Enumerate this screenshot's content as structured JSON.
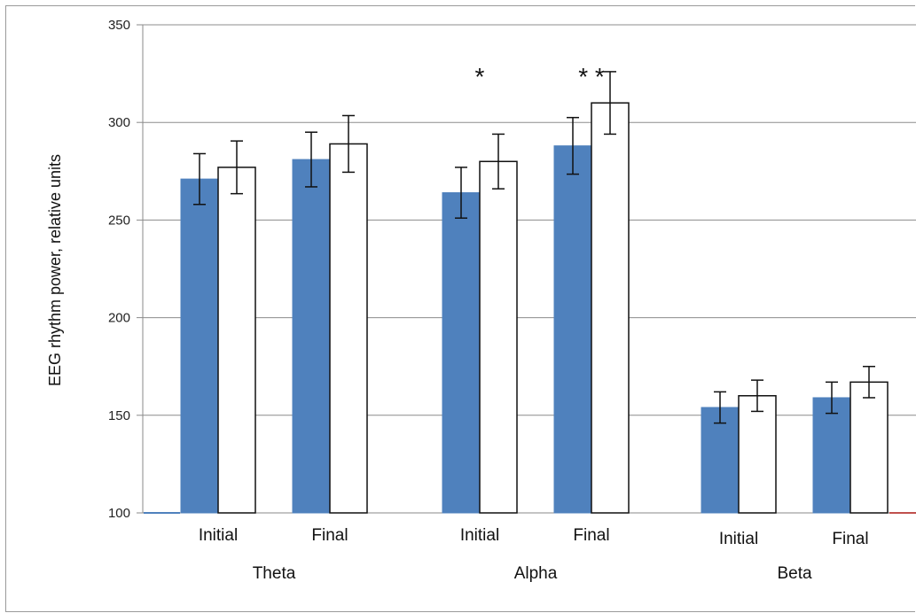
{
  "chart_data": {
    "type": "bar",
    "ylabel": "EEG rhythm power, relative units",
    "ylim": [
      100,
      350
    ],
    "yticks": [
      100,
      150,
      200,
      250,
      300,
      350
    ],
    "grid": true,
    "groups": [
      {
        "name": "Theta",
        "pairs": [
          {
            "label": "Initial",
            "values": [
              271,
              277
            ],
            "errors": [
              13,
              13.5
            ],
            "marker": ""
          },
          {
            "label": "Final",
            "values": [
              281,
              289
            ],
            "errors": [
              14,
              14.5
            ],
            "marker": ""
          }
        ]
      },
      {
        "name": "Alpha",
        "pairs": [
          {
            "label": "Initial",
            "values": [
              264,
              280
            ],
            "errors": [
              13,
              14
            ],
            "marker": "*"
          },
          {
            "label": "Final",
            "values": [
              288,
              310
            ],
            "errors": [
              14.5,
              16
            ],
            "marker": "**"
          }
        ]
      },
      {
        "name": "Beta",
        "pairs": [
          {
            "label": "Initial",
            "values": [
              154,
              160
            ],
            "errors": [
              8,
              8
            ],
            "marker": ""
          },
          {
            "label": "Final",
            "values": [
              159,
              167
            ],
            "errors": [
              8,
              8
            ],
            "marker": ""
          }
        ]
      }
    ],
    "series_colors": [
      "#4f81bd",
      "#ffffff"
    ]
  }
}
